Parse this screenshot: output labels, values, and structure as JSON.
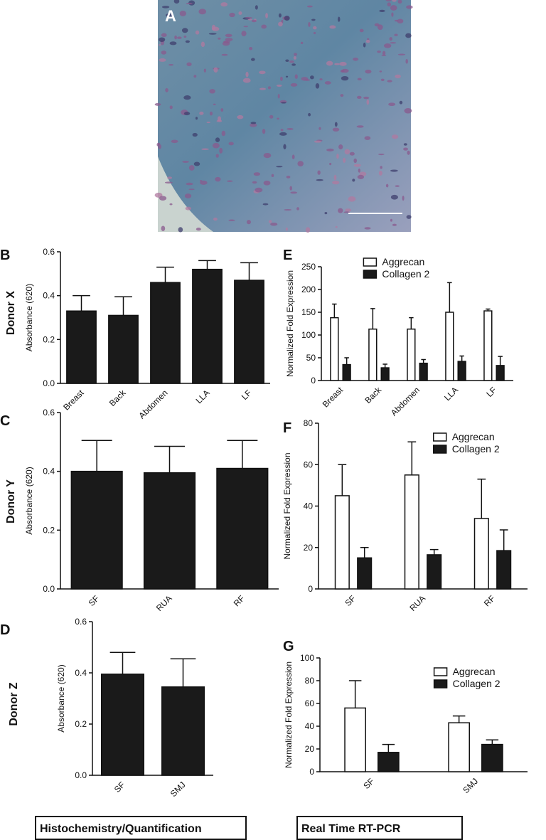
{
  "image_panel": {
    "label": "A"
  },
  "row_labels": [
    "Donor X",
    "Donor Y",
    "Donor Z"
  ],
  "footer_labels": [
    "Histochemistry/Quantification",
    "Real Time RT-PCR"
  ],
  "chart_data": [
    {
      "type": "bar",
      "panel": "B",
      "ylabel": "Absorbance (620)",
      "categories": [
        "Breast",
        "Back",
        "Abdomen",
        "LLA",
        "LF"
      ],
      "values": [
        0.33,
        0.31,
        0.46,
        0.52,
        0.47
      ],
      "errors": [
        0.07,
        0.085,
        0.07,
        0.04,
        0.08
      ],
      "color": "#1a1a1a",
      "ylim": [
        0,
        0.6
      ],
      "yticks": [
        {
          "value": 0,
          "label": "0.0"
        },
        0.2,
        0.4,
        0.6
      ]
    },
    {
      "type": "bar",
      "panel": "E",
      "ylabel": "Normalized Fold Expression",
      "categories": [
        "Breast",
        "Back",
        "Abdomen",
        "LLA",
        "LF"
      ],
      "series": [
        {
          "name": "Aggrecan",
          "color": "#ffffff",
          "values": [
            138,
            113,
            113,
            150,
            153
          ],
          "errors": [
            30,
            45,
            25,
            65,
            4
          ]
        },
        {
          "name": "Collagen 2",
          "color": "#1a1a1a",
          "values": [
            35,
            28,
            38,
            42,
            33
          ],
          "errors": [
            15,
            8,
            8,
            12,
            20
          ]
        }
      ],
      "ylim": [
        0,
        250
      ],
      "yticks": [
        0,
        50,
        100,
        150,
        200,
        250
      ],
      "legend": "top"
    },
    {
      "type": "bar",
      "panel": "C",
      "ylabel": "Absorbance (620)",
      "categories": [
        "SF",
        "RUA",
        "RF"
      ],
      "values": [
        0.4,
        0.395,
        0.41
      ],
      "errors": [
        0.105,
        0.09,
        0.095
      ],
      "color": "#1a1a1a",
      "ylim": [
        0,
        0.6
      ],
      "yticks": [
        {
          "value": 0,
          "label": "0.0"
        },
        0.2,
        0.4,
        0.6
      ]
    },
    {
      "type": "bar",
      "panel": "F",
      "ylabel": "Normalized Fold Expression",
      "categories": [
        "SF",
        "RUA",
        "RF"
      ],
      "series": [
        {
          "name": "Aggrecan",
          "color": "#ffffff",
          "values": [
            45,
            55,
            34
          ],
          "errors": [
            15,
            16,
            19
          ]
        },
        {
          "name": "Collagen 2",
          "color": "#1a1a1a",
          "values": [
            15,
            16.5,
            18.5
          ],
          "errors": [
            5,
            2.5,
            10
          ]
        }
      ],
      "ylim": [
        0,
        80
      ],
      "yticks": [
        0,
        20,
        40,
        60,
        80
      ],
      "legend": "top-right"
    },
    {
      "type": "bar",
      "panel": "D",
      "ylabel": "Absorbance (620)",
      "categories": [
        "SF",
        "SMJ"
      ],
      "values": [
        0.395,
        0.345
      ],
      "errors": [
        0.085,
        0.11
      ],
      "color": "#1a1a1a",
      "ylim": [
        0,
        0.6
      ],
      "yticks": [
        {
          "value": 0,
          "label": "0.0"
        },
        0.2,
        0.4,
        0.6
      ]
    },
    {
      "type": "bar",
      "panel": "G",
      "ylabel": "Normalized Fold Expression",
      "categories": [
        "SF",
        "SMJ"
      ],
      "series": [
        {
          "name": "Aggrecan",
          "color": "#ffffff",
          "values": [
            56,
            43
          ],
          "errors": [
            24,
            6
          ]
        },
        {
          "name": "Collagen 2",
          "color": "#1a1a1a",
          "values": [
            17,
            24
          ],
          "errors": [
            7,
            4
          ]
        }
      ],
      "ylim": [
        0,
        100
      ],
      "yticks": [
        0,
        20,
        40,
        60,
        80,
        100
      ],
      "legend": "top-right"
    }
  ]
}
